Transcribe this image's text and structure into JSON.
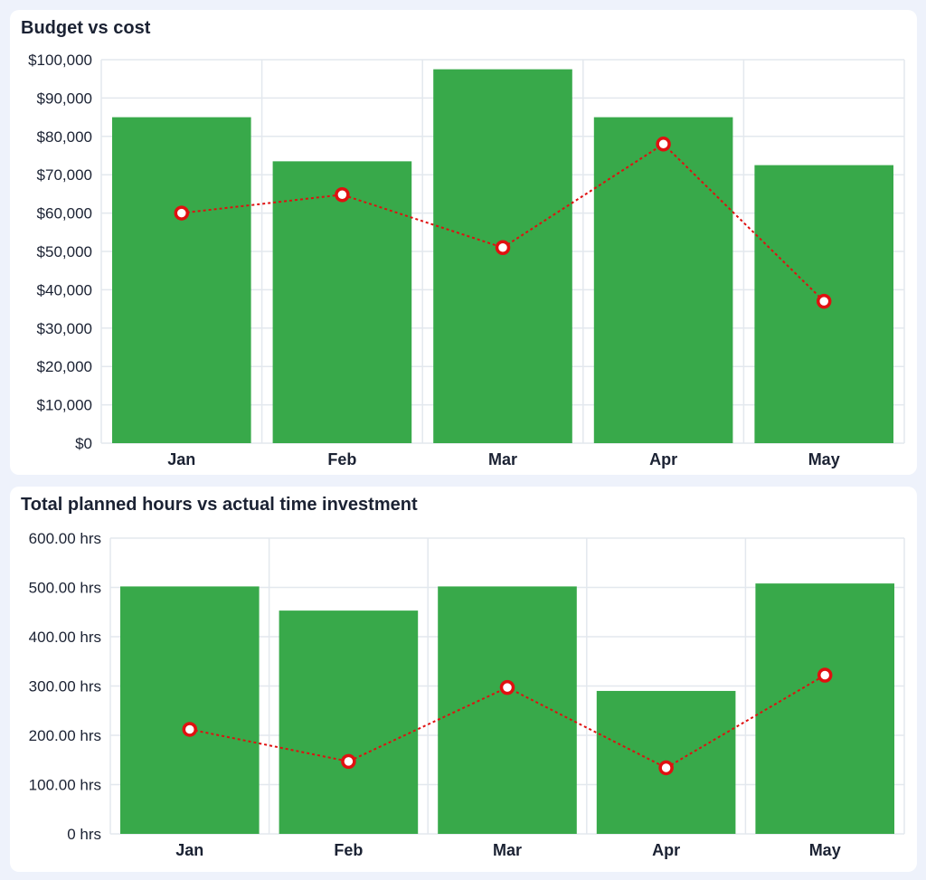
{
  "colors": {
    "bar": "#38a94a",
    "line": "#e01010",
    "grid": "#e3e8ee",
    "background": "#eef2fb"
  },
  "chart_data": [
    {
      "type": "bar",
      "title": "Budget vs cost",
      "categories": [
        "Jan",
        "Feb",
        "Mar",
        "Apr",
        "May"
      ],
      "series": [
        {
          "type": "bar",
          "values": [
            85000,
            73500,
            97500,
            85000,
            72500
          ]
        },
        {
          "type": "line",
          "style": "dotted",
          "values": [
            60000,
            64800,
            51000,
            78000,
            37000
          ]
        }
      ],
      "yticks": [
        "$0",
        "$10,000",
        "$20,000",
        "$30,000",
        "$40,000",
        "$50,000",
        "$60,000",
        "$70,000",
        "$80,000",
        "$90,000",
        "$100,000"
      ],
      "ylim": [
        0,
        100000
      ],
      "grid": true
    },
    {
      "type": "bar",
      "title": "Total planned hours vs actual time investment",
      "categories": [
        "Jan",
        "Feb",
        "Mar",
        "Apr",
        "May"
      ],
      "series": [
        {
          "type": "bar",
          "values": [
            502,
            453,
            502,
            290,
            508
          ]
        },
        {
          "type": "line",
          "style": "dotted",
          "values": [
            212,
            147,
            297,
            134,
            322
          ]
        }
      ],
      "yticks": [
        "0 hrs",
        "100.00 hrs",
        "200.00 hrs",
        "300.00 hrs",
        "400.00 hrs",
        "500.00 hrs",
        "600.00 hrs"
      ],
      "ylim": [
        0,
        600
      ],
      "grid": true
    }
  ]
}
